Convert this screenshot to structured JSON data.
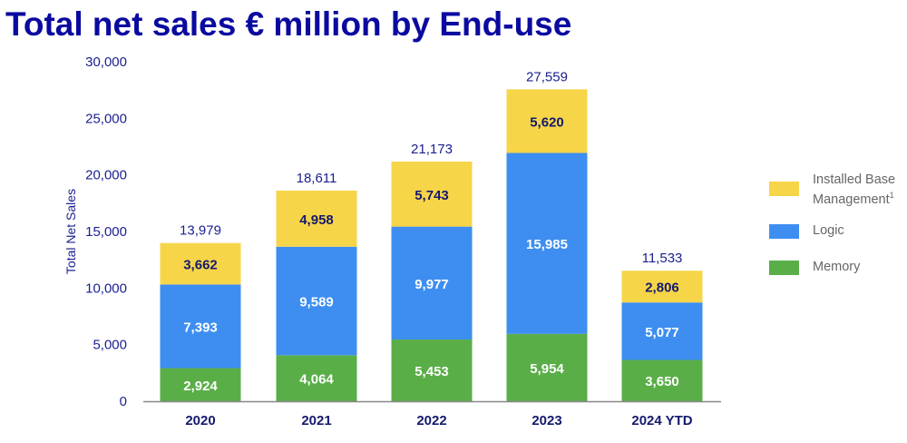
{
  "chart_data": {
    "type": "bar",
    "stacked": true,
    "title": "Total net sales € million by End-use",
    "ylabel": "Total Net Sales",
    "xlabel": "",
    "ylim": [
      0,
      30000
    ],
    "yticks": [
      "0",
      "5,000",
      "10,000",
      "15,000",
      "20,000",
      "25,000",
      "30,000"
    ],
    "categories": [
      "2020",
      "2021",
      "2022",
      "2023",
      "2024 YTD"
    ],
    "series": [
      {
        "name": "Memory",
        "color": "#5aae47",
        "values": [
          2924,
          4064,
          5453,
          5954,
          3650
        ],
        "labels": [
          "2,924",
          "4,064",
          "5,453",
          "5,954",
          "3,650"
        ]
      },
      {
        "name": "Logic",
        "color": "#3d8ef0",
        "values": [
          7393,
          9589,
          9977,
          15985,
          5077
        ],
        "labels": [
          "7,393",
          "9,589",
          "9,977",
          "15,985",
          "5,077"
        ]
      },
      {
        "name": "Installed Base Management",
        "superscript": "1",
        "color": "#f7d548",
        "values": [
          3662,
          4958,
          5743,
          5620,
          2806
        ],
        "labels": [
          "3,662",
          "4,958",
          "5,743",
          "5,620",
          "2,806"
        ]
      }
    ],
    "totals": [
      13979,
      18611,
      21173,
      27559,
      11533
    ],
    "total_labels": [
      "13,979",
      "18,611",
      "21,173",
      "27,559",
      "11,533"
    ],
    "grid": false,
    "legend_position": "right"
  }
}
